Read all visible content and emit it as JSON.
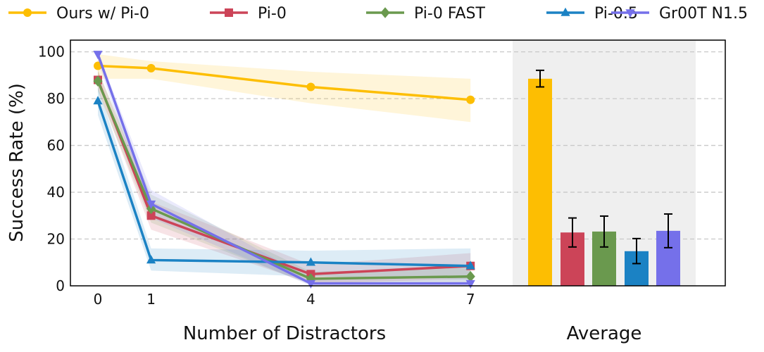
{
  "chart_data": {
    "type": "line",
    "xlabel": "Number of Distractors",
    "ylabel": "Success Rate (%)",
    "x": [
      0,
      1,
      4,
      7
    ],
    "x_tick_labels": [
      "0",
      "1",
      "4",
      "7"
    ],
    "ylim": [
      0,
      105
    ],
    "y_ticks": [
      0,
      20,
      40,
      60,
      80,
      100
    ],
    "grid": "horizontal dashed",
    "legend_position": "top",
    "series": [
      {
        "name": "Ours w/ Pi-0",
        "color": "#FDBE02",
        "marker": "circle",
        "values": [
          94,
          93,
          85,
          79.5
        ],
        "band_low": [
          88.5,
          88.5,
          78,
          70
        ],
        "band_high": [
          99,
          96,
          91.5,
          88.5
        ]
      },
      {
        "name": "Pi-0",
        "color": "#CC4458",
        "marker": "square",
        "values": [
          88,
          30,
          5,
          8.5
        ],
        "band_low": [
          84,
          24,
          1,
          3
        ],
        "band_high": [
          92,
          36,
          9,
          14
        ]
      },
      {
        "name": "Pi-0 FAST",
        "color": "#6A994E",
        "marker": "diamond",
        "values": [
          87.5,
          33,
          3,
          4
        ],
        "band_low": [
          83,
          27,
          0.5,
          1
        ],
        "band_high": [
          92,
          39,
          6,
          8
        ]
      },
      {
        "name": "Pi-0.5",
        "color": "#1B82C4",
        "marker": "triangle-up",
        "values": [
          79,
          11,
          10,
          8.5
        ],
        "band_low": [
          73,
          6.5,
          4,
          2.7
        ],
        "band_high": [
          85,
          16,
          15,
          16
        ]
      },
      {
        "name": "Gr00T N1.5",
        "color": "#7570EA",
        "marker": "triangle-down",
        "values": [
          99,
          35,
          1,
          1
        ],
        "band_low": [
          96,
          29,
          0,
          0
        ],
        "band_high": [
          100,
          41,
          3,
          3
        ]
      }
    ],
    "average": {
      "label": "Average",
      "values": [
        88.5,
        22.8,
        23.2,
        14.8,
        23.5
      ],
      "err_low": [
        85,
        16.6,
        16.6,
        9.5,
        16.3
      ],
      "err_high": [
        92.1,
        29,
        29.8,
        20.2,
        30.7
      ]
    }
  }
}
